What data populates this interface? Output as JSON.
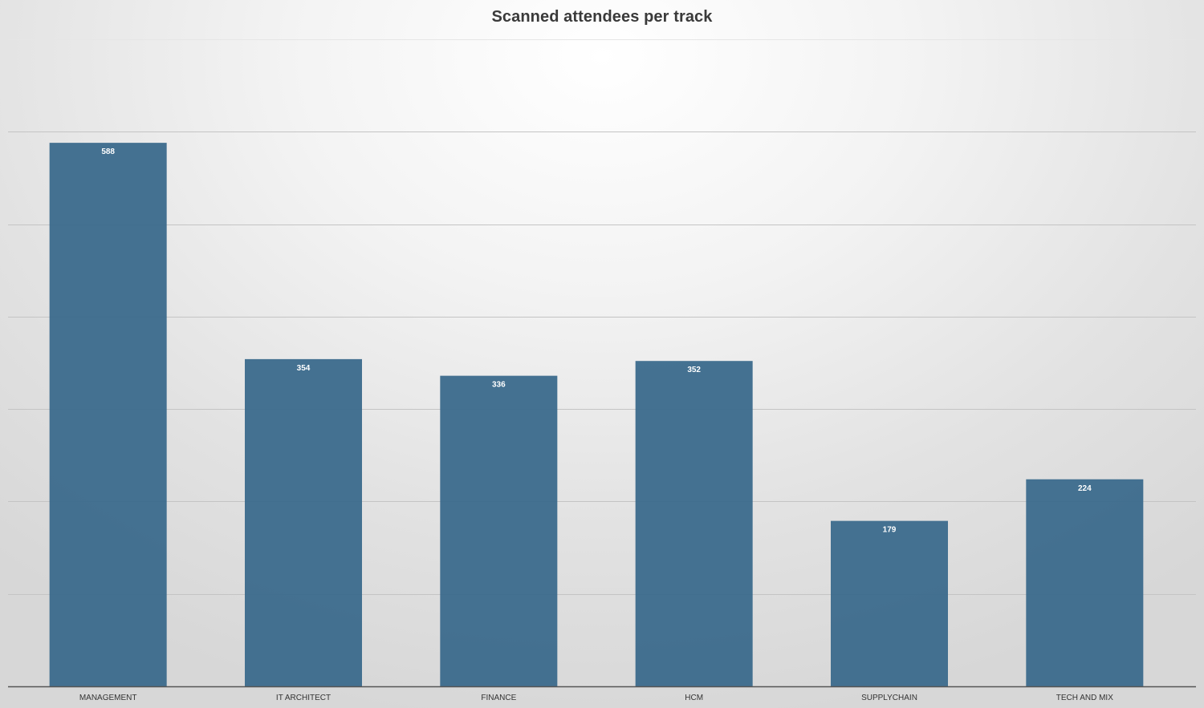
{
  "chart_data": {
    "type": "bar",
    "title": "Scanned attendees per track",
    "xlabel": "",
    "ylabel": "",
    "categories": [
      "MANAGEMENT",
      "IT ARCHITECT",
      "FINANCE",
      "HCM",
      "SUPPLYCHAIN",
      "TECH AND MIX"
    ],
    "values": [
      588,
      354,
      336,
      352,
      179,
      224
    ],
    "ylim": [
      0,
      700
    ],
    "ytick_step": 100,
    "grid": true,
    "y_tick_labels_shown": false,
    "data_labels": "inside-top",
    "legend": "none",
    "bar_color": "#3b6a8c"
  }
}
